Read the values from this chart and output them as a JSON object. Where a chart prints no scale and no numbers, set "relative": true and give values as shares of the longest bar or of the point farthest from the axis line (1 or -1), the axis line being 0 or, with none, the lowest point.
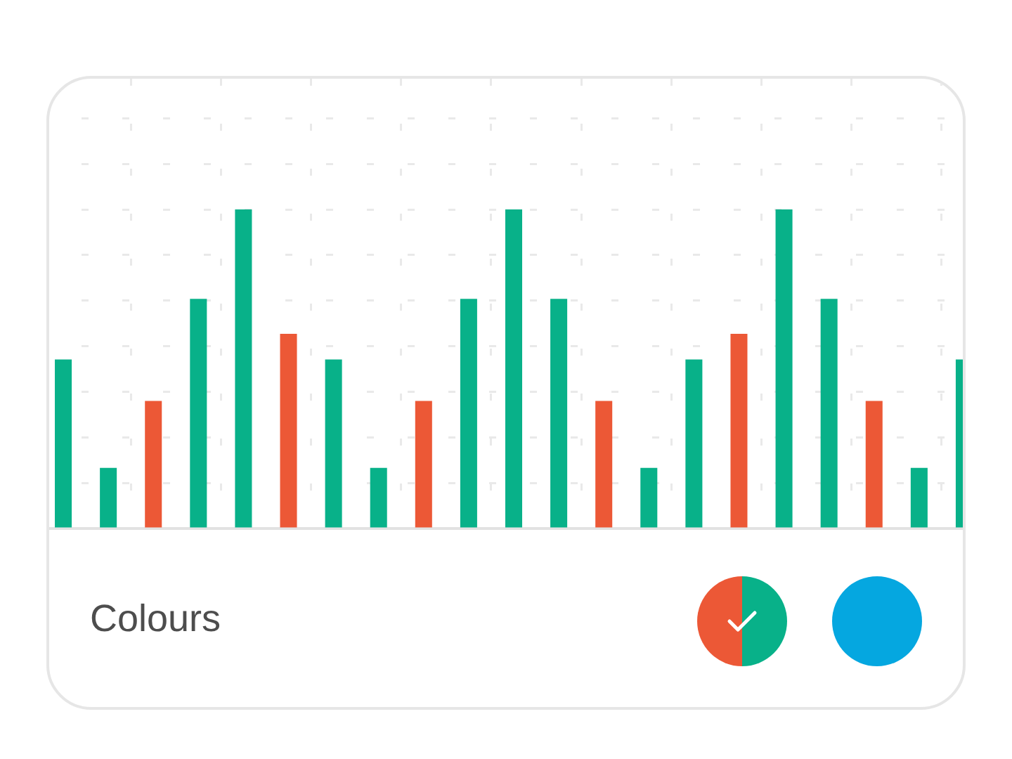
{
  "chart_data": {
    "type": "bar",
    "relative": true,
    "grid": true,
    "categories": [
      null,
      null,
      null,
      null,
      null,
      null,
      null,
      null,
      null,
      null,
      null,
      null,
      null,
      null,
      null,
      null,
      null,
      null,
      null,
      null,
      null
    ],
    "values": [
      0.53,
      0.19,
      0.4,
      0.72,
      1,
      0.61,
      0.53,
      0.19,
      0.4,
      0.72,
      1,
      0.72,
      0.4,
      0.19,
      0.53,
      0.61,
      1,
      0.72,
      0.4,
      0.19,
      0.53
    ],
    "colors": [
      "#08b189",
      "#08b189",
      "#ec5836",
      "#08b189",
      "#08b189",
      "#ec5836",
      "#08b189",
      "#08b189",
      "#ec5836",
      "#08b189",
      "#08b189",
      "#08b189",
      "#ec5836",
      "#08b189",
      "#08b189",
      "#ec5836",
      "#08b189",
      "#08b189",
      "#ec5836",
      "#08b189",
      "#08b189"
    ],
    "annotations": [
      "Colours"
    ]
  }
}
